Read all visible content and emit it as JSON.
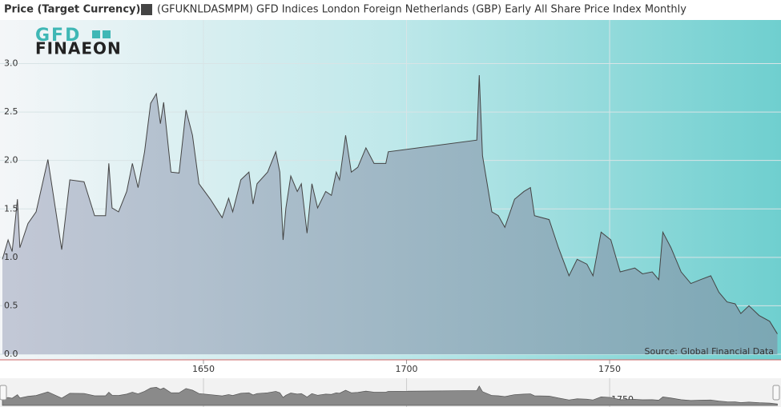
{
  "chart_data": {
    "type": "area",
    "title": "Price (Target Currency)",
    "logo": {
      "top": "GFD",
      "bottom": "FINAEON"
    },
    "source": "Source: Global Financial Data",
    "xlim": [
      1600.5,
      1791.6
    ],
    "xticks": [
      1650,
      1700,
      1750
    ],
    "ylim": [
      0,
      3.45
    ],
    "yticks": [
      {
        "value": 0,
        "label": "0.0"
      },
      0.5,
      {
        "value": 1,
        "label": "1.0"
      },
      1.5,
      {
        "value": 2,
        "label": "2.0"
      },
      2.5,
      {
        "value": 3,
        "label": "3.0"
      }
    ],
    "grid": true,
    "series": [
      {
        "name": "(GFUKNLDASMPM) GFD Indices London Foreign Netherlands (GBP) Early All Share Price Index Monthly",
        "color": "#444444",
        "x": [
          1600.5,
          1601.9,
          1602.9,
          1604.2,
          1604.8,
          1606.8,
          1608.8,
          1611.7,
          1615.1,
          1617.1,
          1620.6,
          1623.2,
          1625.9,
          1626.7,
          1627.5,
          1629.1,
          1631.1,
          1632.5,
          1633.9,
          1635.5,
          1637.0,
          1638.4,
          1639.4,
          1640.2,
          1642.0,
          1644.0,
          1645.7,
          1647.3,
          1648.9,
          1651.7,
          1654.6,
          1656.2,
          1657.2,
          1659.2,
          1661.2,
          1662.2,
          1663.2,
          1665.8,
          1667.8,
          1668.8,
          1669.6,
          1670.3,
          1671.5,
          1673.1,
          1674.1,
          1675.5,
          1676.7,
          1678.1,
          1680.1,
          1681.5,
          1682.7,
          1683.5,
          1685.0,
          1686.4,
          1688.0,
          1690.0,
          1692.0,
          1694.9,
          1695.5,
          1717.3,
          1717.9,
          1718.7,
          1721.0,
          1722.6,
          1724.2,
          1726.6,
          1728.9,
          1730.5,
          1731.5,
          1735.1,
          1737.4,
          1740.0,
          1742.0,
          1744.4,
          1745.9,
          1747.9,
          1750.3,
          1752.6,
          1756.2,
          1758.1,
          1760.5,
          1762.1,
          1763.1,
          1765.1,
          1767.6,
          1770.0,
          1772.4,
          1774.9,
          1776.9,
          1778.9,
          1780.9,
          1782.3,
          1784.3,
          1786.8,
          1789.4,
          1791.3
        ],
        "values": [
          0.98,
          1.18,
          1.06,
          1.6,
          1.1,
          1.35,
          1.47,
          2.01,
          1.08,
          1.8,
          1.78,
          1.43,
          1.43,
          1.97,
          1.51,
          1.47,
          1.68,
          1.97,
          1.72,
          2.09,
          2.59,
          2.69,
          2.38,
          2.6,
          1.88,
          1.87,
          2.52,
          2.26,
          1.76,
          1.6,
          1.41,
          1.61,
          1.47,
          1.8,
          1.88,
          1.55,
          1.76,
          1.88,
          2.09,
          1.88,
          1.18,
          1.51,
          1.84,
          1.68,
          1.76,
          1.25,
          1.76,
          1.51,
          1.68,
          1.64,
          1.88,
          1.8,
          2.26,
          1.88,
          1.93,
          2.13,
          1.97,
          1.97,
          2.09,
          2.21,
          2.88,
          2.05,
          1.47,
          1.43,
          1.31,
          1.6,
          1.68,
          1.72,
          1.43,
          1.39,
          1.1,
          0.81,
          0.98,
          0.93,
          0.81,
          1.26,
          1.18,
          0.85,
          0.89,
          0.83,
          0.85,
          0.77,
          1.26,
          1.1,
          0.85,
          0.73,
          0.77,
          0.81,
          0.64,
          0.54,
          0.52,
          0.42,
          0.5,
          0.4,
          0.34,
          0.21
        ]
      }
    ]
  }
}
